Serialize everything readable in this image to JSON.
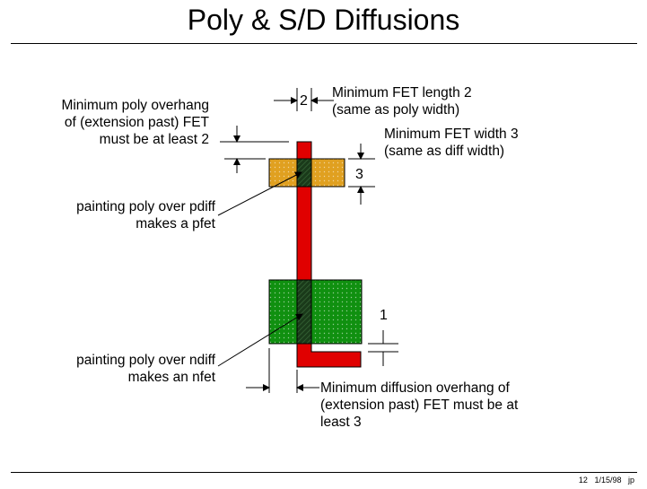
{
  "title": "Poly & S/D Diffusions",
  "labels": {
    "poly_overhang": [
      "Minimum poly overhang",
      "of (extension past) FET",
      "must be at least 2"
    ],
    "fet_length": [
      "Minimum FET length 2",
      "(same as poly width)"
    ],
    "fet_width": [
      "Minimum FET width 3",
      "(same as diff width)"
    ],
    "pfet": [
      "painting poly over pdiff",
      "makes a pfet"
    ],
    "nfet": [
      "painting poly over ndiff",
      "makes an nfet"
    ],
    "diff_overhang": [
      "Minimum diffusion overhang of",
      "(extension past) FET must be at",
      "least 3"
    ]
  },
  "dims": {
    "fet_length": "2",
    "fet_width": "3",
    "spacing": "1"
  },
  "footer": {
    "page": "12",
    "date": "1/15/98",
    "author": "jp"
  },
  "colors": {
    "poly": "#e00000",
    "pdiff": "#e0a020",
    "ndiff": "#109010",
    "fet": "#1a3a1a"
  }
}
